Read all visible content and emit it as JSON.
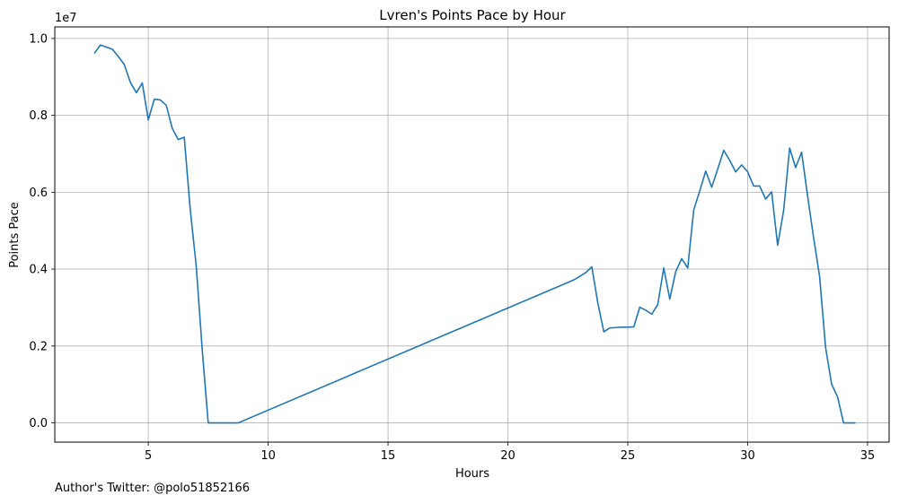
{
  "chart_data": {
    "type": "line",
    "title": "Lvren's Points Pace by Hour",
    "xlabel": "Hours",
    "ylabel": "Points Pace",
    "y_offset_text": "1e7",
    "xlim": [
      1.1,
      35.9
    ],
    "ylim": [
      -0.05,
      1.03
    ],
    "xticks": [
      5,
      10,
      15,
      20,
      25,
      30,
      35
    ],
    "xtick_labels": [
      "5",
      "10",
      "15",
      "20",
      "25",
      "30",
      "35"
    ],
    "yticks": [
      0.0,
      0.2,
      0.4,
      0.6,
      0.8,
      1.0
    ],
    "ytick_labels": [
      "0.0",
      "0.2",
      "0.4",
      "0.6",
      "0.8",
      "1.0"
    ],
    "grid": true,
    "series": [
      {
        "color": "#1f77b4",
        "x": [
          2.75,
          3.0,
          3.5,
          3.75,
          4.0,
          4.25,
          4.5,
          4.75,
          5.0,
          5.25,
          5.5,
          5.75,
          6.0,
          6.25,
          6.5,
          6.75,
          7.0,
          7.25,
          7.5,
          7.75,
          8.0,
          8.25,
          8.5,
          8.75,
          22.75,
          23.0,
          23.25,
          23.5,
          23.75,
          24.0,
          24.25,
          24.5,
          24.75,
          25.0,
          25.25,
          25.5,
          25.75,
          26.0,
          26.25,
          26.5,
          26.75,
          27.0,
          27.25,
          27.5,
          27.75,
          28.0,
          28.25,
          28.5,
          28.75,
          29.0,
          29.25,
          29.5,
          29.75,
          30.0,
          30.25,
          30.5,
          30.75,
          31.0,
          31.25,
          31.5,
          31.75,
          32.0,
          32.25,
          32.5,
          32.75,
          33.0,
          33.25,
          33.5,
          33.75,
          34.0,
          34.25,
          34.5
        ],
        "y": [
          0.961,
          0.983,
          0.972,
          0.953,
          0.932,
          0.886,
          0.859,
          0.884,
          0.788,
          0.842,
          0.84,
          0.826,
          0.766,
          0.737,
          0.743,
          0.555,
          0.408,
          0.19,
          0.0,
          0.0,
          0.0,
          0.0,
          0.0,
          0.0,
          0.372,
          0.381,
          0.391,
          0.406,
          0.312,
          0.237,
          0.247,
          0.248,
          0.249,
          0.249,
          0.25,
          0.301,
          0.293,
          0.283,
          0.308,
          0.403,
          0.322,
          0.394,
          0.427,
          0.403,
          0.554,
          0.603,
          0.655,
          0.613,
          0.66,
          0.709,
          0.683,
          0.653,
          0.671,
          0.653,
          0.616,
          0.616,
          0.582,
          0.601,
          0.462,
          0.552,
          0.715,
          0.664,
          0.704,
          0.59,
          0.482,
          0.381,
          0.196,
          0.101,
          0.068,
          0.0,
          0.0,
          0.0
        ]
      }
    ]
  },
  "footer": {
    "note": "Author's Twitter: @polo51852166"
  }
}
